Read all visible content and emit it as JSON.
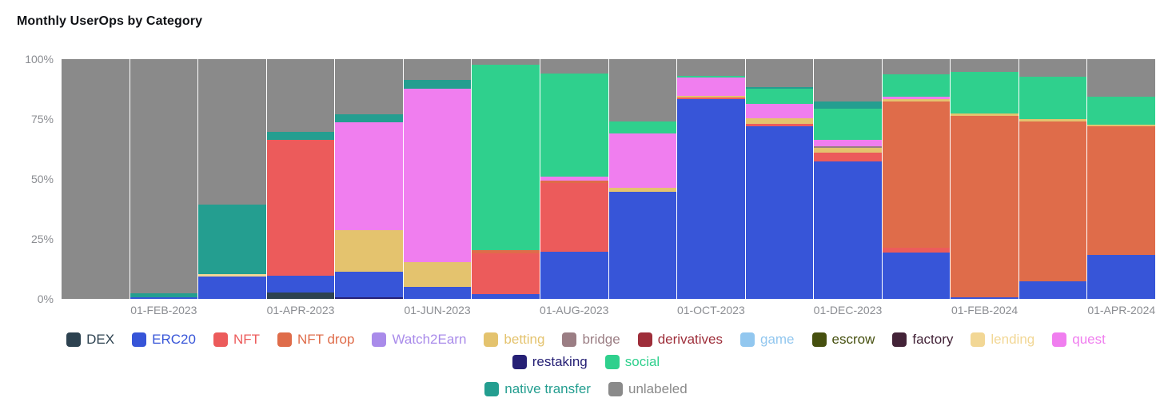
{
  "title": "Monthly UserOps by Category",
  "chart_data": {
    "type": "bar",
    "stacked": true,
    "normalized": "percent",
    "title": "Monthly UserOps by Category",
    "xlabel": "",
    "ylabel": "",
    "ylim": [
      0,
      100
    ],
    "grid": false,
    "legend_position": "bottom",
    "y_ticks": [
      "100%",
      "75%",
      "50%",
      "25%",
      "0%"
    ],
    "x_tick_labels_shown": [
      "01-FEB-2023",
      "01-APR-2023",
      "01-JUN-2023",
      "01-AUG-2023",
      "01-OCT-2023",
      "01-DEC-2023",
      "01-FEB-2024",
      "01-APR-2024"
    ],
    "series_colors": {
      "DEX": "#2d4250",
      "ERC20": "#3755d8",
      "NFT": "#ec5b5b",
      "NFT drop": "#df6c4a",
      "Watch2Earn": "#a98bea",
      "betting": "#e4c36e",
      "bridge": "#9b7e84",
      "derivatives": "#9e2e3a",
      "game": "#92c7ef",
      "escrow": "#46500f",
      "factory": "#432338",
      "lending": "#f2d795",
      "quest": "#f07eef",
      "restaking": "#262075",
      "social": "#2fd08d",
      "native transfer": "#249e90",
      "unlabeled": "#8a8a8a"
    },
    "bars": [
      {
        "month": "2023-01",
        "axis_label": "",
        "segments": [
          {
            "name": "unlabeled",
            "value": 100
          }
        ]
      },
      {
        "month": "2023-02",
        "axis_label": "01-FEB-2023",
        "segments": [
          {
            "name": "ERC20",
            "value": 0.7
          },
          {
            "name": "native transfer",
            "value": 1.8
          },
          {
            "name": "unlabeled",
            "value": 97.5
          }
        ]
      },
      {
        "month": "2023-03",
        "axis_label": "",
        "segments": [
          {
            "name": "ERC20",
            "value": 9.3
          },
          {
            "name": "lending",
            "value": 0.9
          },
          {
            "name": "native transfer",
            "value": 29.1
          },
          {
            "name": "unlabeled",
            "value": 60.7
          }
        ]
      },
      {
        "month": "2023-04",
        "axis_label": "01-APR-2023",
        "segments": [
          {
            "name": "DEX",
            "value": 2.6
          },
          {
            "name": "ERC20",
            "value": 7.0
          },
          {
            "name": "NFT",
            "value": 56.9
          },
          {
            "name": "native transfer",
            "value": 3.3
          },
          {
            "name": "unlabeled",
            "value": 30.2
          }
        ]
      },
      {
        "month": "2023-05",
        "axis_label": "",
        "segments": [
          {
            "name": "restaking",
            "value": 0.7
          },
          {
            "name": "ERC20",
            "value": 10.7
          },
          {
            "name": "betting",
            "value": 17.4
          },
          {
            "name": "quest",
            "value": 44.9
          },
          {
            "name": "native transfer",
            "value": 3.3
          },
          {
            "name": "unlabeled",
            "value": 23.0
          }
        ]
      },
      {
        "month": "2023-06",
        "axis_label": "01-JUN-2023",
        "segments": [
          {
            "name": "ERC20",
            "value": 4.9
          },
          {
            "name": "betting",
            "value": 10.3
          },
          {
            "name": "quest",
            "value": 72.6
          },
          {
            "name": "native transfer",
            "value": 3.6
          },
          {
            "name": "unlabeled",
            "value": 8.6
          }
        ]
      },
      {
        "month": "2023-07",
        "axis_label": "",
        "segments": [
          {
            "name": "ERC20",
            "value": 1.9
          },
          {
            "name": "NFT",
            "value": 17.2
          },
          {
            "name": "NFT drop",
            "value": 1.1
          },
          {
            "name": "social",
            "value": 77.5
          },
          {
            "name": "unlabeled",
            "value": 2.3
          }
        ]
      },
      {
        "month": "2023-08",
        "axis_label": "01-AUG-2023",
        "segments": [
          {
            "name": "ERC20",
            "value": 19.8
          },
          {
            "name": "NFT",
            "value": 28.7
          },
          {
            "name": "NFT drop",
            "value": 0.8
          },
          {
            "name": "quest",
            "value": 1.7
          },
          {
            "name": "social",
            "value": 42.9
          },
          {
            "name": "unlabeled",
            "value": 6.1
          }
        ]
      },
      {
        "month": "2023-09",
        "axis_label": "",
        "segments": [
          {
            "name": "ERC20",
            "value": 44.6
          },
          {
            "name": "betting",
            "value": 1.7
          },
          {
            "name": "quest",
            "value": 22.6
          },
          {
            "name": "social",
            "value": 5.0
          },
          {
            "name": "unlabeled",
            "value": 26.1
          }
        ]
      },
      {
        "month": "2023-10",
        "axis_label": "01-OCT-2023",
        "segments": [
          {
            "name": "ERC20",
            "value": 83.2
          },
          {
            "name": "NFT",
            "value": 0.7
          },
          {
            "name": "betting",
            "value": 0.7
          },
          {
            "name": "quest",
            "value": 7.8
          },
          {
            "name": "social",
            "value": 0.7
          },
          {
            "name": "unlabeled",
            "value": 6.9
          }
        ]
      },
      {
        "month": "2023-11",
        "axis_label": "",
        "segments": [
          {
            "name": "ERC20",
            "value": 71.9
          },
          {
            "name": "NFT",
            "value": 1.1
          },
          {
            "name": "betting",
            "value": 2.2
          },
          {
            "name": "quest",
            "value": 6.3
          },
          {
            "name": "social",
            "value": 6.1
          },
          {
            "name": "native transfer",
            "value": 0.7
          },
          {
            "name": "unlabeled",
            "value": 11.7
          }
        ]
      },
      {
        "month": "2023-12",
        "axis_label": "01-DEC-2023",
        "segments": [
          {
            "name": "ERC20",
            "value": 57.2
          },
          {
            "name": "NFT",
            "value": 3.7
          },
          {
            "name": "betting",
            "value": 2.2
          },
          {
            "name": "bridge",
            "value": 0.7
          },
          {
            "name": "quest",
            "value": 2.5
          },
          {
            "name": "social",
            "value": 13.1
          },
          {
            "name": "native transfer",
            "value": 2.9
          },
          {
            "name": "unlabeled",
            "value": 17.7
          }
        ]
      },
      {
        "month": "2024-01",
        "axis_label": "",
        "segments": [
          {
            "name": "ERC20",
            "value": 19.3
          },
          {
            "name": "NFT",
            "value": 2.2
          },
          {
            "name": "NFT drop",
            "value": 60.8
          },
          {
            "name": "betting",
            "value": 1.0
          },
          {
            "name": "quest",
            "value": 1.0
          },
          {
            "name": "social",
            "value": 9.3
          },
          {
            "name": "unlabeled",
            "value": 6.4
          }
        ]
      },
      {
        "month": "2024-02",
        "axis_label": "01-FEB-2024",
        "segments": [
          {
            "name": "ERC20",
            "value": 0.7
          },
          {
            "name": "NFT drop",
            "value": 75.5
          },
          {
            "name": "betting",
            "value": 1.0
          },
          {
            "name": "social",
            "value": 17.5
          },
          {
            "name": "unlabeled",
            "value": 5.3
          }
        ]
      },
      {
        "month": "2024-03",
        "axis_label": "",
        "segments": [
          {
            "name": "ERC20",
            "value": 7.3
          },
          {
            "name": "NFT drop",
            "value": 66.7
          },
          {
            "name": "betting",
            "value": 1.1
          },
          {
            "name": "social",
            "value": 17.6
          },
          {
            "name": "unlabeled",
            "value": 7.3
          }
        ]
      },
      {
        "month": "2024-04",
        "axis_label": "01-APR-2024",
        "segments": [
          {
            "name": "ERC20",
            "value": 18.5
          },
          {
            "name": "NFT drop",
            "value": 53.4
          },
          {
            "name": "betting",
            "value": 0.9
          },
          {
            "name": "social",
            "value": 11.7
          },
          {
            "name": "unlabeled",
            "value": 15.5
          }
        ]
      }
    ]
  },
  "legend": {
    "items": [
      {
        "label": "DEX",
        "color": "#2d4250"
      },
      {
        "label": "ERC20",
        "color": "#3755d8"
      },
      {
        "label": "NFT",
        "color": "#ec5b5b"
      },
      {
        "label": "NFT drop",
        "color": "#df6c4a"
      },
      {
        "label": "Watch2Earn",
        "color": "#a98bea"
      },
      {
        "label": "betting",
        "color": "#e4c36e"
      },
      {
        "label": "bridge",
        "color": "#9b7e84"
      },
      {
        "label": "derivatives",
        "color": "#9e2e3a"
      },
      {
        "label": "game",
        "color": "#92c7ef"
      },
      {
        "label": "escrow",
        "color": "#46500f"
      },
      {
        "label": "factory",
        "color": "#432338"
      },
      {
        "label": "lending",
        "color": "#f2d795"
      },
      {
        "label": "quest",
        "color": "#f07eef"
      },
      {
        "label": "restaking",
        "color": "#262075"
      },
      {
        "label": "social",
        "color": "#2fd08d"
      },
      {
        "label": "native transfer",
        "color": "#249e90"
      },
      {
        "label": "unlabeled",
        "color": "#8a8a8a"
      }
    ]
  }
}
